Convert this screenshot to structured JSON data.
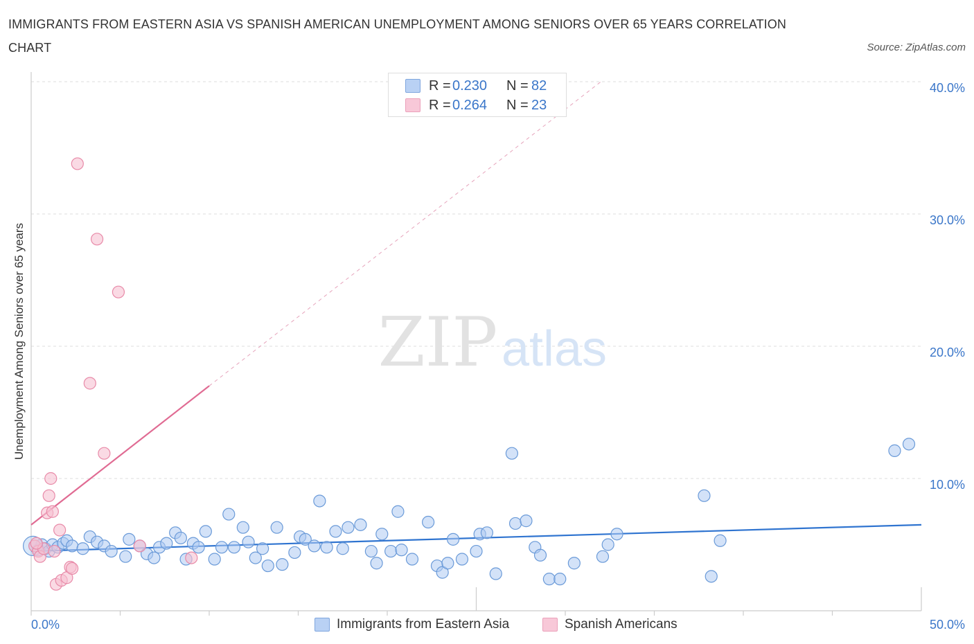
{
  "title": "IMMIGRANTS FROM EASTERN ASIA VS SPANISH AMERICAN UNEMPLOYMENT AMONG SENIORS OVER 65 YEARS CORRELATION CHART",
  "source": "Source: ZipAtlas.com",
  "watermark": {
    "zip": "ZIP",
    "atlas": "atlas"
  },
  "colors": {
    "blue_fill": "#aecbf2",
    "blue_stroke": "#6a9ad8",
    "blue_line": "#2f74d0",
    "pink_fill": "#f6c1d2",
    "pink_stroke": "#e88aa8",
    "pink_line": "#e06b93",
    "grid": "#dddddd",
    "axis_text": "#3a76c9"
  },
  "legend_top": {
    "rows": [
      {
        "r_label": "R =",
        "r_value": "0.230",
        "n_label": "N =",
        "n_value": "82"
      },
      {
        "r_label": "R =",
        "r_value": "0.264",
        "n_label": "N =",
        "n_value": "23"
      }
    ]
  },
  "legend_bottom": [
    "Immigrants from Eastern Asia",
    "Spanish Americans"
  ],
  "chart_data": {
    "type": "scatter",
    "title": "IMMIGRANTS FROM EASTERN ASIA VS SPANISH AMERICAN UNEMPLOYMENT AMONG SENIORS OVER 65 YEARS CORRELATION CHART",
    "xlabel": "",
    "ylabel": "Unemployment Among Seniors over 65 years",
    "xlim": [
      0,
      50
    ],
    "ylim": [
      0,
      40
    ],
    "x_tick_labels": [
      "0.0%",
      "50.0%"
    ],
    "y_ticks": [
      10,
      20,
      30,
      40
    ],
    "y_tick_labels": [
      "10.0%",
      "20.0%",
      "30.0%",
      "40.0%"
    ],
    "legend_position": "top-center",
    "series": [
      {
        "name": "Immigrants from Eastern Asia",
        "color": "blue",
        "r": 0.23,
        "n": 82,
        "trend": {
          "x0": 0,
          "y0": 4.5,
          "x1": 50,
          "y1": 6.5,
          "dashed_extension": false
        },
        "points": [
          [
            0.2,
            4.9
          ],
          [
            0.4,
            4.6
          ],
          [
            0.6,
            5.0
          ],
          [
            0.8,
            4.7
          ],
          [
            1.0,
            4.5
          ],
          [
            1.2,
            5.0
          ],
          [
            1.5,
            4.8
          ],
          [
            1.8,
            5.1
          ],
          [
            2.0,
            5.3
          ],
          [
            2.3,
            4.9
          ],
          [
            2.9,
            4.7
          ],
          [
            3.3,
            5.6
          ],
          [
            3.7,
            5.2
          ],
          [
            4.1,
            4.9
          ],
          [
            4.5,
            4.5
          ],
          [
            5.3,
            4.1
          ],
          [
            5.5,
            5.4
          ],
          [
            6.1,
            4.9
          ],
          [
            6.5,
            4.3
          ],
          [
            6.9,
            4.0
          ],
          [
            7.2,
            4.8
          ],
          [
            7.6,
            5.1
          ],
          [
            8.1,
            5.9
          ],
          [
            8.4,
            5.5
          ],
          [
            8.7,
            3.9
          ],
          [
            9.1,
            5.1
          ],
          [
            9.4,
            4.8
          ],
          [
            9.8,
            6.0
          ],
          [
            10.3,
            3.9
          ],
          [
            10.7,
            4.8
          ],
          [
            11.1,
            7.3
          ],
          [
            11.4,
            4.8
          ],
          [
            11.9,
            6.3
          ],
          [
            12.2,
            5.2
          ],
          [
            12.6,
            4.0
          ],
          [
            13.0,
            4.7
          ],
          [
            13.3,
            3.4
          ],
          [
            13.8,
            6.3
          ],
          [
            14.1,
            3.5
          ],
          [
            14.8,
            4.4
          ],
          [
            15.1,
            5.6
          ],
          [
            15.4,
            5.4
          ],
          [
            15.9,
            4.9
          ],
          [
            16.2,
            8.3
          ],
          [
            16.6,
            4.8
          ],
          [
            17.1,
            6.0
          ],
          [
            17.5,
            4.7
          ],
          [
            17.8,
            6.3
          ],
          [
            18.5,
            6.5
          ],
          [
            19.1,
            4.5
          ],
          [
            19.4,
            3.6
          ],
          [
            19.7,
            5.8
          ],
          [
            20.2,
            4.5
          ],
          [
            20.6,
            7.5
          ],
          [
            20.8,
            4.6
          ],
          [
            21.4,
            3.9
          ],
          [
            22.3,
            6.7
          ],
          [
            22.8,
            3.4
          ],
          [
            23.1,
            2.9
          ],
          [
            23.4,
            3.6
          ],
          [
            23.7,
            5.4
          ],
          [
            24.2,
            3.9
          ],
          [
            25.0,
            4.5
          ],
          [
            25.2,
            5.8
          ],
          [
            25.6,
            5.9
          ],
          [
            26.1,
            2.8
          ],
          [
            27.0,
            11.9
          ],
          [
            27.2,
            6.6
          ],
          [
            27.8,
            6.8
          ],
          [
            28.3,
            4.8
          ],
          [
            28.6,
            4.2
          ],
          [
            29.1,
            2.4
          ],
          [
            29.7,
            2.4
          ],
          [
            30.5,
            3.6
          ],
          [
            32.1,
            4.1
          ],
          [
            32.4,
            5.0
          ],
          [
            32.9,
            5.8
          ],
          [
            37.8,
            8.7
          ],
          [
            38.2,
            2.6
          ],
          [
            38.7,
            5.3
          ],
          [
            48.5,
            12.1
          ],
          [
            49.3,
            12.6
          ]
        ]
      },
      {
        "name": "Spanish Americans",
        "color": "pink",
        "r": 0.264,
        "n": 23,
        "trend": {
          "x0": 0,
          "y0": 6.5,
          "x1": 10,
          "y1": 17.0,
          "dashed_extension": true,
          "dash_x1": 32,
          "dash_y1": 40.0
        },
        "points": [
          [
            0.2,
            4.9
          ],
          [
            0.4,
            4.5
          ],
          [
            0.5,
            4.1
          ],
          [
            0.7,
            4.7
          ],
          [
            0.9,
            7.4
          ],
          [
            1.0,
            8.7
          ],
          [
            1.1,
            10.0
          ],
          [
            1.2,
            7.5
          ],
          [
            1.3,
            4.5
          ],
          [
            1.4,
            2.0
          ],
          [
            1.6,
            6.1
          ],
          [
            1.7,
            2.3
          ],
          [
            2.0,
            2.5
          ],
          [
            2.2,
            3.3
          ],
          [
            2.3,
            3.2
          ],
          [
            2.6,
            33.8
          ],
          [
            3.3,
            17.2
          ],
          [
            3.7,
            28.1
          ],
          [
            4.1,
            11.9
          ],
          [
            4.9,
            24.1
          ],
          [
            6.1,
            4.9
          ],
          [
            9.0,
            4.0
          ],
          [
            0.3,
            5.1
          ]
        ]
      }
    ]
  }
}
